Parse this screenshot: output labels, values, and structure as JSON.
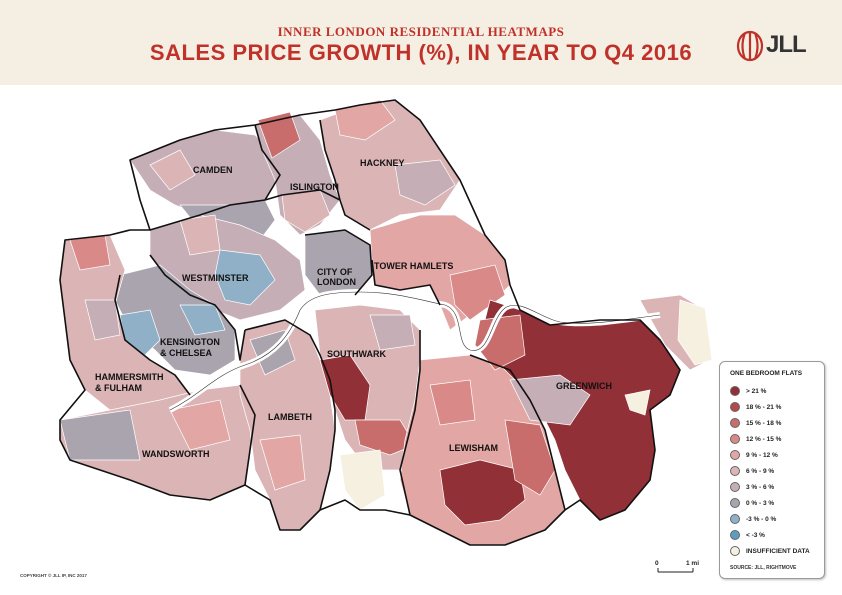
{
  "header": {
    "subtitle": "INNER LONDON RESIDENTIAL HEATMAPS",
    "title": "SALES PRICE GROWTH (%), IN YEAR TO Q4 2016",
    "logo_text": "JLL",
    "accent_color": "#c0312a"
  },
  "map": {
    "boroughs": [
      {
        "label_lines": [
          "CAMDEN"
        ],
        "band": "3-6"
      },
      {
        "label_lines": [
          "ISLINGTON"
        ],
        "band": "6-9"
      },
      {
        "label_lines": [
          "HACKNEY"
        ],
        "band": "6-9"
      },
      {
        "label_lines": [
          "WESTMINSTER"
        ],
        "band": "3-6"
      },
      {
        "label_lines": [
          "CITY OF",
          "LONDON"
        ],
        "band": "0-3"
      },
      {
        "label_lines": [
          "TOWER HAMLETS"
        ],
        "band": "9-12"
      },
      {
        "label_lines": [
          "KENSINGTON",
          "& CHELSEA"
        ],
        "band": "0-3"
      },
      {
        "label_lines": [
          "HAMMERSMITH",
          "& FULHAM"
        ],
        "band": "6-9"
      },
      {
        "label_lines": [
          "SOUTHWARK"
        ],
        "band": "6-9"
      },
      {
        "label_lines": [
          "GREENWICH"
        ],
        "band": "gt21"
      },
      {
        "label_lines": [
          "LAMBETH"
        ],
        "band": "6-9"
      },
      {
        "label_lines": [
          "LEWISHAM"
        ],
        "band": "15-18"
      },
      {
        "label_lines": [
          "WANDSWORTH"
        ],
        "band": "6-9"
      }
    ],
    "scale": {
      "start": "0",
      "end": "1 mi"
    }
  },
  "legend": {
    "title": "ONE BEDROOM FLATS",
    "items": [
      {
        "label": "> 21 %",
        "color": "#913036"
      },
      {
        "label": "18 % - 21 %",
        "color": "#b4494c"
      },
      {
        "label": "15 % - 18 %",
        "color": "#c86c6c"
      },
      {
        "label": "12 % - 15 %",
        "color": "#d98a88"
      },
      {
        "label": "9 % - 12 %",
        "color": "#e2a6a4"
      },
      {
        "label": "6 % - 9 %",
        "color": "#dbb4b6"
      },
      {
        "label": "3 % - 6 %",
        "color": "#c6aeb6"
      },
      {
        "label": "0 % - 3 %",
        "color": "#aaa4ae"
      },
      {
        "label": "-3 % - 0 %",
        "color": "#8fb0c6"
      },
      {
        "label": "< -3 %",
        "color": "#5d9ebf"
      },
      {
        "label": "INSUFFICIENT DATA",
        "color": "#f6f0e0"
      }
    ],
    "source": "SOURCE: JLL, RIGHTMOVE"
  },
  "footer": {
    "copyright": "COPYRIGHT © JLL IP, INC 2017"
  }
}
